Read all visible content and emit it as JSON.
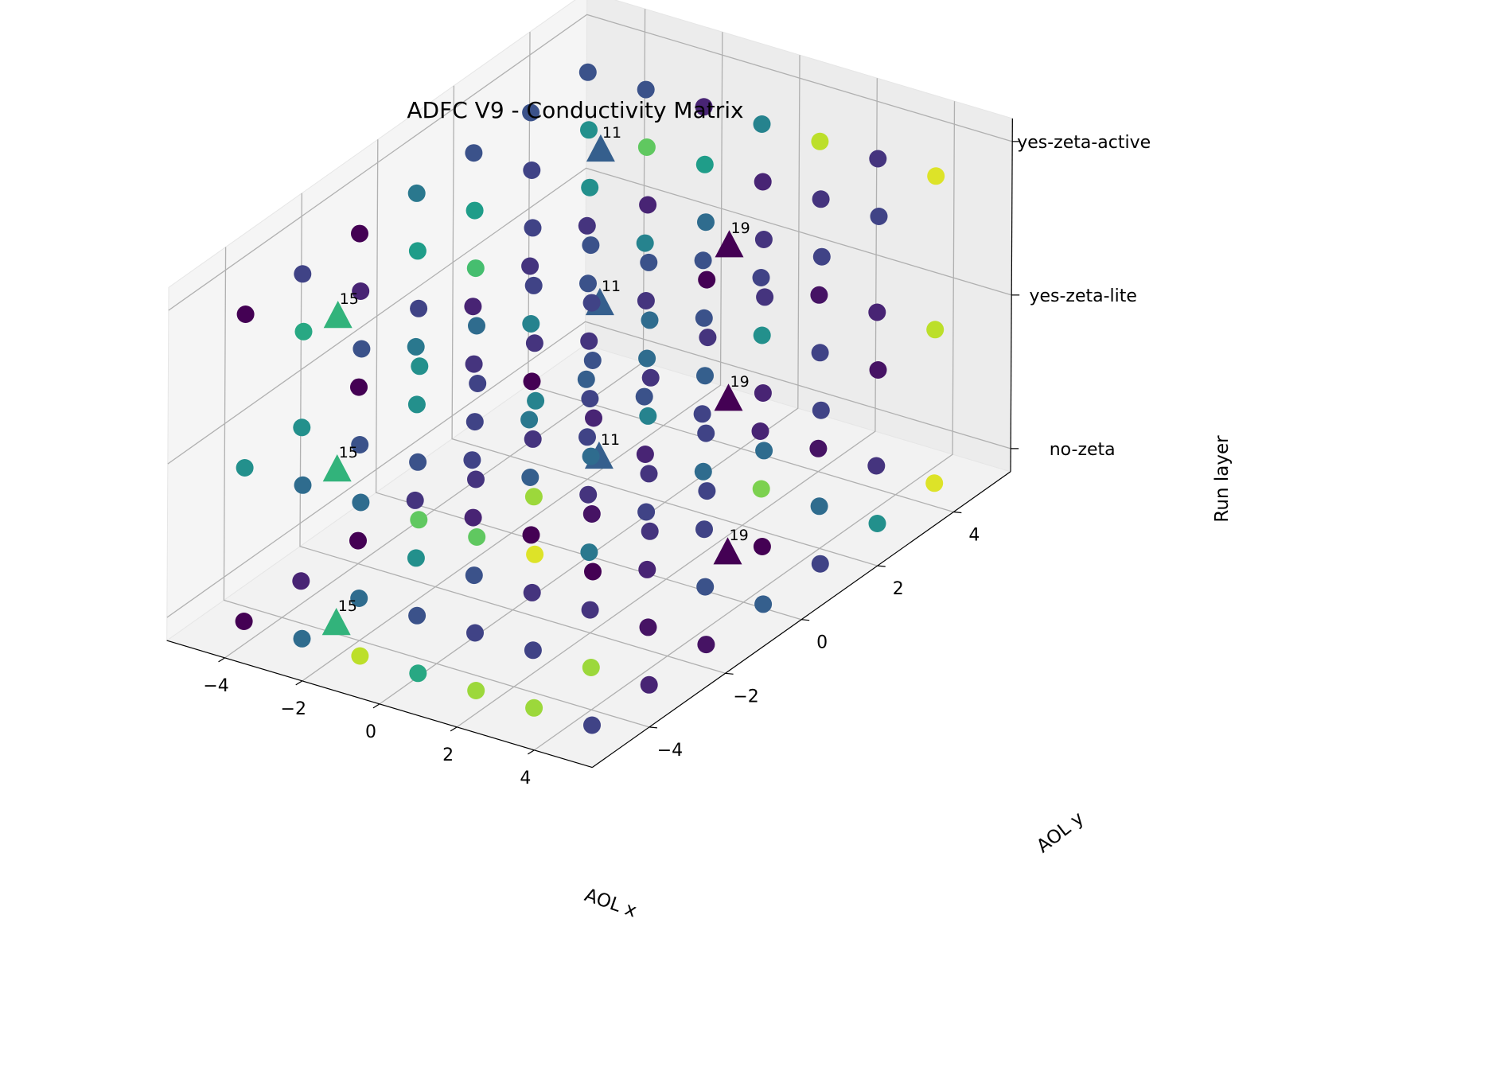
{
  "chart_data": {
    "type": "scatter",
    "projection": "3d",
    "title": "ADFC V9 - Conductivity Matrix",
    "xlabel": "AOL x",
    "ylabel": "AOL y",
    "zlabel": "Run layer",
    "xlim": [
      -5.5,
      5.5
    ],
    "ylim": [
      -5.5,
      5.5
    ],
    "x_ticks": [
      "−4",
      "−2",
      "0",
      "2",
      "4"
    ],
    "x_tick_values": [
      -4,
      -2,
      0,
      2,
      4
    ],
    "y_ticks": [
      "−4",
      "−2",
      "0",
      "2",
      "4"
    ],
    "y_tick_values": [
      -4,
      -2,
      0,
      2,
      4
    ],
    "z_ticks": [
      "no-zeta",
      "yes-zeta-lite",
      "yes-zeta-active"
    ],
    "grid": true,
    "colormap": "viridis",
    "circle_series": {
      "marker": "circle",
      "x": [
        -4,
        -2.5,
        -1,
        0.5,
        2,
        3.5,
        5
      ],
      "y": [
        -5,
        -3.5,
        -2,
        -0.5,
        1,
        2.5,
        4
      ],
      "layers": [
        {
          "z": "no-zeta",
          "values": [
            [
              0.0,
              0.35,
              0.9,
              0.6,
              0.85,
              0.85,
              0.2
            ],
            [
              0.1,
              0.35,
              0.25,
              0.2,
              0.2,
              0.85,
              0.1
            ],
            [
              0.0,
              0.5,
              0.25,
              0.15,
              0.15,
              0.05,
              0.05
            ],
            [
              0.15,
              0.1,
              0.0,
              0.4,
              0.1,
              0.25,
              0.3
            ],
            [
              0.2,
              0.3,
              0.15,
              0.2,
              0.2,
              0.0,
              0.2
            ],
            [
              0.4,
              0.2,
              0.1,
              0.35,
              0.8,
              0.35,
              0.5
            ],
            [
              0.3,
              0.25,
              0.2,
              0.1,
              0.05,
              0.15,
              0.95
            ]
          ]
        },
        {
          "z": "yes-zeta-lite",
          "values": [
            [
              0.5,
              0.35,
              0.35,
              0.75,
              0.75,
              0.95,
              0.0
            ],
            [
              0.5,
              0.25,
              0.25,
              0.15,
              0.85,
              0.05,
              0.15
            ],
            [
              0.0,
              0.5,
              0.2,
              0.15,
              0.35,
              0.15,
              0.2
            ],
            [
              0.4,
              0.15,
              0.0,
              0.2,
              0.45,
              0.2,
              0.35
            ],
            [
              0.1,
              0.45,
              0.15,
              0.35,
              0.3,
              0.1,
              0.2
            ],
            [
              0.15,
              0.25,
              0.15,
              0.25,
              0.5,
              0.2,
              0.05
            ],
            [
              0.15,
              0.45,
              0.25,
              0.2,
              0.05,
              0.1,
              0.9
            ]
          ]
        },
        {
          "z": "yes-zeta-active",
          "values": [
            [
              0.0,
              0.6,
              0.25,
              0.5,
              0.2,
              0.45,
              0.1
            ],
            [
              0.2,
              0.1,
              0.2,
              0.35,
              0.15,
              0.25,
              0.15
            ],
            [
              0.0,
              0.55,
              0.7,
              0.2,
              0.2,
              0.35,
              0.15
            ],
            [
              0.4,
              0.55,
              0.2,
              0.25,
              0.25,
              0.0,
              0.15
            ],
            [
              0.25,
              0.2,
              0.5,
              0.1,
              0.35,
              0.15,
              0.2
            ],
            [
              0.25,
              0.5,
              0.75,
              0.55,
              0.1,
              0.15,
              0.2
            ],
            [
              0.25,
              0.25,
              0.1,
              0.45,
              0.9,
              0.15,
              0.95
            ]
          ]
        }
      ]
    },
    "triangle_series": {
      "marker": "triangle",
      "points": [
        {
          "x": -2.3,
          "y": -4.3,
          "z": "no-zeta",
          "label": "15",
          "color_value": 0.65
        },
        {
          "x": -2.3,
          "y": -4.3,
          "z": "yes-zeta-lite",
          "label": "15",
          "color_value": 0.65
        },
        {
          "x": -2.3,
          "y": -4.3,
          "z": "yes-zeta-active",
          "label": "15",
          "color_value": 0.65
        },
        {
          "x": -1.8,
          "y": 2.1,
          "z": "no-zeta",
          "label": "11",
          "color_value": 0.3
        },
        {
          "x": -1.8,
          "y": 2.1,
          "z": "yes-zeta-lite",
          "label": "11",
          "color_value": 0.3
        },
        {
          "x": -1.8,
          "y": 2.1,
          "z": "yes-zeta-active",
          "label": "11",
          "color_value": 0.3
        },
        {
          "x": 3.0,
          "y": 0.6,
          "z": "no-zeta",
          "label": "19",
          "color_value": 0.0
        },
        {
          "x": 3.0,
          "y": 0.6,
          "z": "yes-zeta-lite",
          "label": "19",
          "color_value": 0.0
        },
        {
          "x": 3.0,
          "y": 0.6,
          "z": "yes-zeta-active",
          "label": "19",
          "color_value": 0.0
        }
      ]
    }
  }
}
